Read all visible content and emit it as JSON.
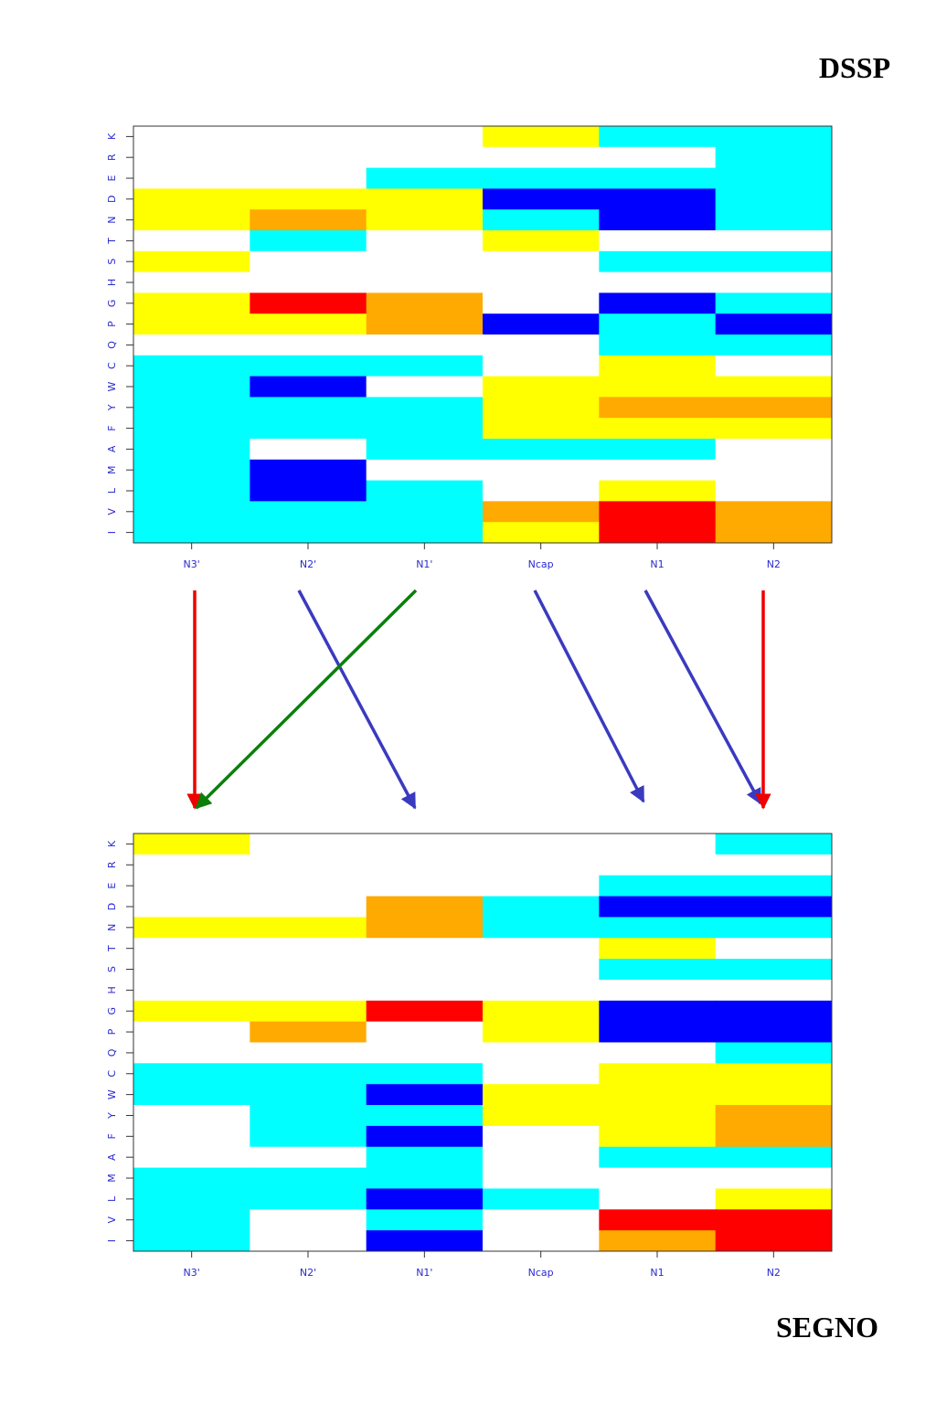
{
  "chart_data": [
    {
      "type": "heatmap",
      "title": "DSSP",
      "x": [
        "N3'",
        "N2'",
        "N1'",
        "Ncap",
        "N1",
        "N2"
      ],
      "y": [
        "K",
        "R",
        "E",
        "D",
        "N",
        "T",
        "S",
        "H",
        "G",
        "P",
        "Q",
        "C",
        "W",
        "Y",
        "F",
        "A",
        "M",
        "L",
        "V",
        "I"
      ],
      "cells": [
        [
          "#fff",
          "#fff",
          "#fff",
          "#ff0",
          "#0ff",
          "#0ff"
        ],
        [
          "#fff",
          "#fff",
          "#fff",
          "#fff",
          "#fff",
          "#0ff"
        ],
        [
          "#fff",
          "#fff",
          "#0ff",
          "#0ff",
          "#0ff",
          "#0ff"
        ],
        [
          "#ff0",
          "#ff0",
          "#ff0",
          "#00f",
          "#00f",
          "#0ff"
        ],
        [
          "#ff0",
          "#fa0",
          "#ff0",
          "#0ff",
          "#00f",
          "#0ff"
        ],
        [
          "#fff",
          "#0ff",
          "#fff",
          "#ff0",
          "#fff",
          "#fff"
        ],
        [
          "#ff0",
          "#fff",
          "#fff",
          "#fff",
          "#0ff",
          "#0ff"
        ],
        [
          "#fff",
          "#fff",
          "#fff",
          "#fff",
          "#fff",
          "#fff"
        ],
        [
          "#ff0",
          "#f00",
          "#fa0",
          "#fff",
          "#00f",
          "#0ff"
        ],
        [
          "#ff0",
          "#ff0",
          "#fa0",
          "#00f",
          "#0ff",
          "#00f"
        ],
        [
          "#fff",
          "#fff",
          "#fff",
          "#fff",
          "#0ff",
          "#0ff"
        ],
        [
          "#0ff",
          "#0ff",
          "#0ff",
          "#fff",
          "#ff0",
          "#fff"
        ],
        [
          "#0ff",
          "#00f",
          "#fff",
          "#ff0",
          "#ff0",
          "#ff0"
        ],
        [
          "#0ff",
          "#0ff",
          "#0ff",
          "#ff0",
          "#fa0",
          "#fa0"
        ],
        [
          "#0ff",
          "#0ff",
          "#0ff",
          "#ff0",
          "#ff0",
          "#ff0"
        ],
        [
          "#0ff",
          "#fff",
          "#0ff",
          "#0ff",
          "#0ff",
          "#fff"
        ],
        [
          "#0ff",
          "#00f",
          "#fff",
          "#fff",
          "#fff",
          "#fff"
        ],
        [
          "#0ff",
          "#00f",
          "#0ff",
          "#fff",
          "#ff0",
          "#fff"
        ],
        [
          "#0ff",
          "#0ff",
          "#0ff",
          "#fa0",
          "#f00",
          "#fa0"
        ],
        [
          "#0ff",
          "#0ff",
          "#0ff",
          "#ff0",
          "#f00",
          "#fa0"
        ]
      ]
    },
    {
      "type": "heatmap",
      "title": "SEGNO",
      "x": [
        "N3'",
        "N2'",
        "N1'",
        "Ncap",
        "N1",
        "N2"
      ],
      "y": [
        "K",
        "R",
        "E",
        "D",
        "N",
        "T",
        "S",
        "H",
        "G",
        "P",
        "Q",
        "C",
        "W",
        "Y",
        "F",
        "A",
        "M",
        "L",
        "V",
        "I"
      ],
      "cells": [
        [
          "#ff0",
          "#fff",
          "#fff",
          "#fff",
          "#fff",
          "#0ff"
        ],
        [
          "#fff",
          "#fff",
          "#fff",
          "#fff",
          "#fff",
          "#fff"
        ],
        [
          "#fff",
          "#fff",
          "#fff",
          "#fff",
          "#0ff",
          "#0ff"
        ],
        [
          "#fff",
          "#fff",
          "#fa0",
          "#0ff",
          "#00f",
          "#00f"
        ],
        [
          "#ff0",
          "#ff0",
          "#fa0",
          "#0ff",
          "#0ff",
          "#0ff"
        ],
        [
          "#fff",
          "#fff",
          "#fff",
          "#fff",
          "#ff0",
          "#fff"
        ],
        [
          "#fff",
          "#fff",
          "#fff",
          "#fff",
          "#0ff",
          "#0ff"
        ],
        [
          "#fff",
          "#fff",
          "#fff",
          "#fff",
          "#fff",
          "#fff"
        ],
        [
          "#ff0",
          "#ff0",
          "#f00",
          "#ff0",
          "#00f",
          "#00f"
        ],
        [
          "#fff",
          "#fa0",
          "#fff",
          "#ff0",
          "#00f",
          "#00f"
        ],
        [
          "#fff",
          "#fff",
          "#fff",
          "#fff",
          "#fff",
          "#0ff"
        ],
        [
          "#0ff",
          "#0ff",
          "#0ff",
          "#fff",
          "#ff0",
          "#ff0"
        ],
        [
          "#0ff",
          "#0ff",
          "#00f",
          "#ff0",
          "#ff0",
          "#ff0"
        ],
        [
          "#fff",
          "#0ff",
          "#0ff",
          "#ff0",
          "#ff0",
          "#fa0"
        ],
        [
          "#fff",
          "#0ff",
          "#00f",
          "#fff",
          "#ff0",
          "#fa0"
        ],
        [
          "#fff",
          "#fff",
          "#0ff",
          "#fff",
          "#0ff",
          "#0ff"
        ],
        [
          "#0ff",
          "#0ff",
          "#0ff",
          "#fff",
          "#fff",
          "#fff"
        ],
        [
          "#0ff",
          "#0ff",
          "#00f",
          "#0ff",
          "#fff",
          "#ff0"
        ],
        [
          "#0ff",
          "#fff",
          "#0ff",
          "#fff",
          "#f00",
          "#f00"
        ],
        [
          "#0ff",
          "#fff",
          "#00f",
          "#fff",
          "#fa0",
          "#f00"
        ]
      ]
    }
  ]
}
